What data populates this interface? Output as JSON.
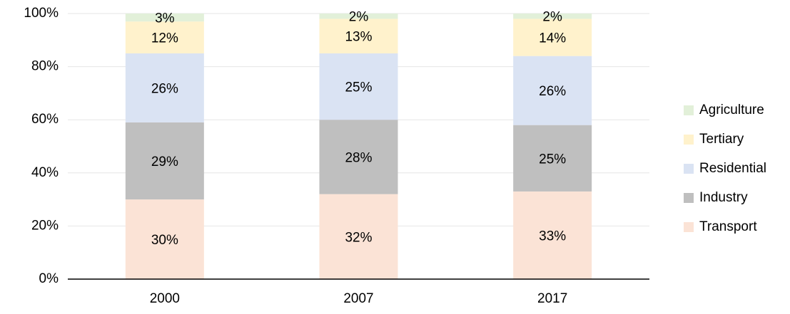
{
  "chart_data": {
    "type": "stacked_bar",
    "categories": [
      "2000",
      "2007",
      "2017"
    ],
    "series": [
      {
        "name": "Transport",
        "color": "#fbe3d6",
        "values": [
          30,
          32,
          33
        ],
        "value_labels": [
          "30%",
          "32%",
          "33%"
        ]
      },
      {
        "name": "Industry",
        "color": "#bfbfbf",
        "values": [
          29,
          28,
          25
        ],
        "value_labels": [
          "29%",
          "28%",
          "25%"
        ]
      },
      {
        "name": "Residential",
        "color": "#dae3f3",
        "values": [
          26,
          25,
          26
        ],
        "value_labels": [
          "26%",
          "25%",
          "26%"
        ]
      },
      {
        "name": "Tertiary",
        "color": "#fff2cc",
        "values": [
          12,
          13,
          14
        ],
        "value_labels": [
          "12%",
          "13%",
          "14%"
        ]
      },
      {
        "name": "Agriculture",
        "color": "#e2f0d9",
        "values": [
          3,
          2,
          2
        ],
        "value_labels": [
          "3%",
          "2%",
          "2%"
        ]
      }
    ],
    "ylim": [
      0,
      100
    ],
    "yticks": [
      {
        "value": 0,
        "label": "0%"
      },
      {
        "value": 20,
        "label": "20%"
      },
      {
        "value": 40,
        "label": "40%"
      },
      {
        "value": 60,
        "label": "60%"
      },
      {
        "value": 80,
        "label": "80%"
      },
      {
        "value": 100,
        "label": "100%"
      }
    ],
    "grid": true,
    "legend": "right"
  }
}
